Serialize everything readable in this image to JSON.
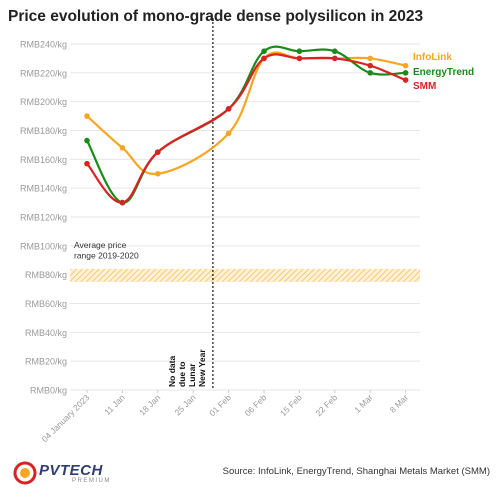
{
  "page": {
    "title": "Price evolution of mono-grade dense polysilicon in 2023",
    "source": "Source: InfoLink, EnergyTrend, Shanghai Metals Market (SMM)",
    "logo": {
      "main": "PVTECH",
      "sub": "PREMIUM"
    }
  },
  "chart_data": {
    "type": "line",
    "title": "Price evolution of mono-grade dense polysilicon in 2023",
    "xlabel": "",
    "ylabel": "",
    "ylim": [
      0,
      240
    ],
    "y_ticks": [
      0,
      20,
      40,
      60,
      80,
      100,
      120,
      140,
      160,
      180,
      200,
      220,
      240
    ],
    "y_tick_prefix": "RMB",
    "y_tick_suffix": "/kg",
    "x_ticks": [
      "04 January 2023",
      "11 Jan",
      "18 Jan",
      "25 Jan",
      "01 Feb",
      "06 Feb",
      "15 Feb",
      "22 Feb",
      "1 Mar",
      "8 Mar"
    ],
    "grid": true,
    "series": [
      {
        "name": "InfoLink",
        "color": "#f6a623",
        "points": [
          {
            "x": 0,
            "y": 190
          },
          {
            "x": 1,
            "y": 168
          },
          {
            "x": 2,
            "y": 150
          },
          {
            "x": 4,
            "y": 178
          },
          {
            "x": 5,
            "y": 230
          },
          {
            "x": 6,
            "y": 230
          },
          {
            "x": 7,
            "y": 230
          },
          {
            "x": 8,
            "y": 230
          },
          {
            "x": 9,
            "y": 225
          }
        ]
      },
      {
        "name": "EnergyTrend",
        "color": "#1b8a1b",
        "points": [
          {
            "x": 0,
            "y": 173
          },
          {
            "x": 1,
            "y": 130
          },
          {
            "x": 2,
            "y": 165
          },
          {
            "x": 4,
            "y": 195
          },
          {
            "x": 5,
            "y": 235
          },
          {
            "x": 6,
            "y": 235
          },
          {
            "x": 7,
            "y": 235
          },
          {
            "x": 8,
            "y": 220
          },
          {
            "x": 9,
            "y": 220
          }
        ]
      },
      {
        "name": "SMM",
        "color": "#d92323",
        "points": [
          {
            "x": 0,
            "y": 157
          },
          {
            "x": 1,
            "y": 130
          },
          {
            "x": 2,
            "y": 165
          },
          {
            "x": 4,
            "y": 195
          },
          {
            "x": 5,
            "y": 230
          },
          {
            "x": 6,
            "y": 230
          },
          {
            "x": 7,
            "y": 230
          },
          {
            "x": 8,
            "y": 225
          },
          {
            "x": 9,
            "y": 215
          }
        ]
      }
    ],
    "legend_placement": "right, beside line ends",
    "annotations": {
      "band": {
        "label": "Average price range 2019-2020",
        "range": [
          75,
          84
        ],
        "color": "#f6a623"
      },
      "vline": {
        "x": 3.5,
        "label": "No data due to Lunar New Year"
      }
    }
  }
}
